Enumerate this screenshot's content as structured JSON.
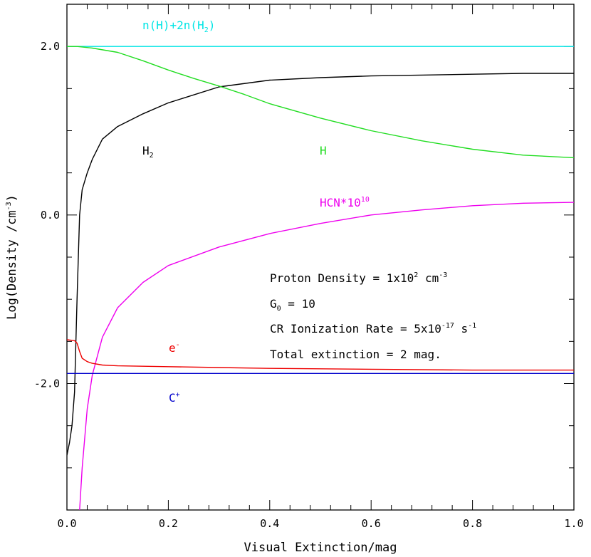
{
  "chart_data": {
    "type": "line",
    "xlabel": "Visual Extinction/mag",
    "ylabel": "Log(Density /cm",
    "ylabel_sup": "-3",
    "ylabel_close": ")",
    "xlim": [
      0.0,
      1.0
    ],
    "ylim": [
      -3.5,
      2.5
    ],
    "xticks": [
      0.0,
      0.2,
      0.4,
      0.6,
      0.8,
      1.0
    ],
    "xtick_labels": [
      "0.0",
      "0.2",
      "0.4",
      "0.6",
      "0.8",
      "1.0"
    ],
    "yticks": [
      -2.0,
      0.0,
      2.0
    ],
    "ytick_labels": [
      "-2.0",
      "0.0",
      "2.0"
    ],
    "series": [
      {
        "name": "n(H)+2n(H2)",
        "color": "#00e5e5",
        "x": [
          0.0,
          1.0
        ],
        "y": [
          2.0,
          2.0
        ]
      },
      {
        "name": "H2",
        "color": "#000000",
        "x": [
          0.0,
          0.005,
          0.01,
          0.015,
          0.02,
          0.025,
          0.03,
          0.04,
          0.05,
          0.07,
          0.1,
          0.15,
          0.2,
          0.3,
          0.4,
          0.5,
          0.6,
          0.7,
          0.8,
          0.9,
          1.0
        ],
        "y": [
          -2.85,
          -2.7,
          -2.5,
          -2.1,
          -1.0,
          0.0,
          0.3,
          0.5,
          0.66,
          0.9,
          1.05,
          1.2,
          1.33,
          1.52,
          1.6,
          1.63,
          1.65,
          1.66,
          1.67,
          1.68,
          1.68
        ]
      },
      {
        "name": "H",
        "color": "#22dd22",
        "x": [
          0.0,
          0.02,
          0.05,
          0.1,
          0.15,
          0.2,
          0.25,
          0.3,
          0.35,
          0.4,
          0.5,
          0.6,
          0.7,
          0.8,
          0.9,
          1.0
        ],
        "y": [
          2.0,
          2.0,
          1.98,
          1.93,
          1.83,
          1.72,
          1.62,
          1.53,
          1.43,
          1.32,
          1.15,
          1.0,
          0.88,
          0.78,
          0.71,
          0.68
        ]
      },
      {
        "name": "HCN*10^10",
        "color": "#ee00ee",
        "x": [
          0.025,
          0.03,
          0.04,
          0.05,
          0.07,
          0.1,
          0.15,
          0.2,
          0.3,
          0.4,
          0.5,
          0.6,
          0.7,
          0.8,
          0.9,
          1.0
        ],
        "y": [
          -3.5,
          -3.0,
          -2.3,
          -1.9,
          -1.45,
          -1.1,
          -0.8,
          -0.6,
          -0.38,
          -0.22,
          -0.1,
          0.0,
          0.06,
          0.11,
          0.14,
          0.15
        ]
      },
      {
        "name": "e-",
        "color": "#ee0000",
        "x": [
          0.0,
          0.015,
          0.02,
          0.025,
          0.03,
          0.04,
          0.05,
          0.07,
          0.1,
          0.2,
          0.3,
          0.4,
          0.6,
          0.8,
          1.0
        ],
        "y": [
          -1.48,
          -1.49,
          -1.52,
          -1.62,
          -1.7,
          -1.74,
          -1.76,
          -1.78,
          -1.79,
          -1.8,
          -1.81,
          -1.82,
          -1.83,
          -1.84,
          -1.84
        ]
      },
      {
        "name": "C+",
        "color": "#0000cc",
        "x": [
          0.0,
          1.0
        ],
        "y": [
          -1.88,
          -1.88
        ]
      }
    ],
    "labels": {
      "total": {
        "text": "n(H)+2n(H",
        "sub": "2",
        "tail": ")",
        "color": "#00e5e5"
      },
      "h2": {
        "text": "H",
        "sub": "2",
        "color": "#000000"
      },
      "h": {
        "text": "H",
        "color": "#22dd22"
      },
      "hcn": {
        "text": "HCN*10",
        "sup": "10",
        "color": "#ee00ee"
      },
      "electron": {
        "text": "e",
        "sup": "-",
        "color": "#ee0000"
      },
      "cplus": {
        "text": "C",
        "sup": "+",
        "color": "#0000cc"
      }
    },
    "annotations": {
      "line1": {
        "text": "Proton Density = 1x10",
        "sup": "2",
        "tail": " cm",
        "sup2": "-3"
      },
      "line2": {
        "text": "G",
        "sub": "0",
        "tail": " = 10"
      },
      "line3": {
        "text": "CR Ionization Rate = 5x10",
        "sup": "-17",
        "tail": " s",
        "sup2": "-1"
      },
      "line4": {
        "text": "Total extinction = 2 mag."
      }
    }
  }
}
